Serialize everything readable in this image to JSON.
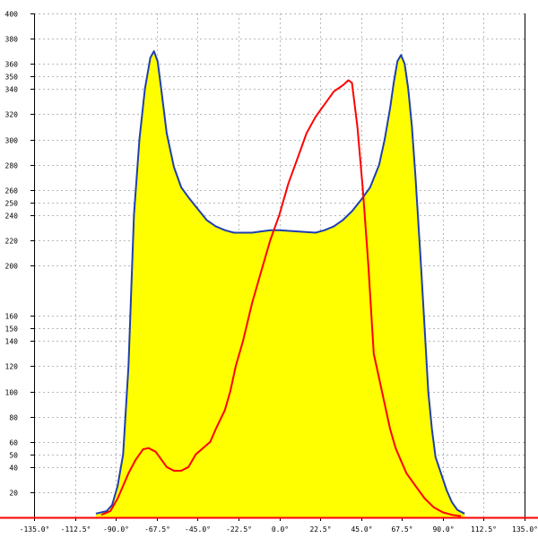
{
  "chart_data": {
    "type": "area",
    "title": "",
    "xlabel": "",
    "ylabel": "",
    "xlim": [
      -135,
      135
    ],
    "ylim": [
      0,
      400
    ],
    "grid": true,
    "x_ticks": [
      {
        "value": -135,
        "label": "-135.0°"
      },
      {
        "value": -112.5,
        "label": "-112.5°"
      },
      {
        "value": -90,
        "label": "-90.0°"
      },
      {
        "value": -67.5,
        "label": "-67.5°"
      },
      {
        "value": -45,
        "label": "-45.0°"
      },
      {
        "value": -22.5,
        "label": "-22.5°"
      },
      {
        "value": 0,
        "label": "0.0°"
      },
      {
        "value": 22.5,
        "label": "22.5°"
      },
      {
        "value": 45,
        "label": "45.0°"
      },
      {
        "value": 67.5,
        "label": "67.5°"
      },
      {
        "value": 90,
        "label": "90.0°"
      },
      {
        "value": 112.5,
        "label": "112.5°"
      },
      {
        "value": 135,
        "label": "135.0°"
      }
    ],
    "y_ticks": [
      {
        "value": 20,
        "label": "20"
      },
      {
        "value": 40,
        "label": "40"
      },
      {
        "value": 50,
        "label": "50"
      },
      {
        "value": 60,
        "label": "60"
      },
      {
        "value": 80,
        "label": "80"
      },
      {
        "value": 100,
        "label": "100"
      },
      {
        "value": 120,
        "label": "120"
      },
      {
        "value": 140,
        "label": "140"
      },
      {
        "value": 150,
        "label": "150"
      },
      {
        "value": 160,
        "label": "160"
      },
      {
        "value": 200,
        "label": "200"
      },
      {
        "value": 220,
        "label": "220"
      },
      {
        "value": 240,
        "label": "240"
      },
      {
        "value": 250,
        "label": "250"
      },
      {
        "value": 260,
        "label": "260"
      },
      {
        "value": 280,
        "label": "280"
      },
      {
        "value": 300,
        "label": "300"
      },
      {
        "value": 320,
        "label": "320"
      },
      {
        "value": 340,
        "label": "340"
      },
      {
        "value": 350,
        "label": "350"
      },
      {
        "value": 360,
        "label": "360"
      },
      {
        "value": 380,
        "label": "380"
      },
      {
        "value": 400,
        "label": "400"
      }
    ],
    "series": [
      {
        "color": "#1f3fb0",
        "fill": "#ffff00",
        "points": [
          [
            -101,
            3
          ],
          [
            -95,
            5
          ],
          [
            -92,
            10
          ],
          [
            -89,
            25
          ],
          [
            -86,
            50
          ],
          [
            -83,
            120
          ],
          [
            -80,
            240
          ],
          [
            -77,
            300
          ],
          [
            -74,
            340
          ],
          [
            -71,
            365
          ],
          [
            -69,
            370
          ],
          [
            -67,
            362
          ],
          [
            -65,
            340
          ],
          [
            -62,
            305
          ],
          [
            -58,
            278
          ],
          [
            -54,
            262
          ],
          [
            -50,
            254
          ],
          [
            -45,
            245
          ],
          [
            -40,
            236
          ],
          [
            -35,
            231
          ],
          [
            -30,
            228
          ],
          [
            -25,
            226
          ],
          [
            -15,
            226
          ],
          [
            -5,
            228
          ],
          [
            0,
            228
          ],
          [
            10,
            227
          ],
          [
            20,
            226
          ],
          [
            25,
            228
          ],
          [
            30,
            231
          ],
          [
            35,
            236
          ],
          [
            40,
            243
          ],
          [
            45,
            252
          ],
          [
            50,
            262
          ],
          [
            55,
            280
          ],
          [
            58,
            300
          ],
          [
            61,
            325
          ],
          [
            63,
            345
          ],
          [
            65,
            362
          ],
          [
            67,
            367
          ],
          [
            69,
            360
          ],
          [
            71,
            340
          ],
          [
            73,
            310
          ],
          [
            75,
            270
          ],
          [
            78,
            200
          ],
          [
            80,
            150
          ],
          [
            82,
            100
          ],
          [
            84,
            70
          ],
          [
            86,
            48
          ],
          [
            89,
            35
          ],
          [
            92,
            22
          ],
          [
            95,
            12
          ],
          [
            98,
            6
          ],
          [
            102,
            3
          ]
        ]
      },
      {
        "color": "#ff0000",
        "points": [
          [
            -98,
            2
          ],
          [
            -93,
            5
          ],
          [
            -89,
            15
          ],
          [
            -86,
            25
          ],
          [
            -83,
            35
          ],
          [
            -79,
            46
          ],
          [
            -75,
            54
          ],
          [
            -72,
            55
          ],
          [
            -68,
            52
          ],
          [
            -66,
            48
          ],
          [
            -62,
            40
          ],
          [
            -58,
            37
          ],
          [
            -54,
            37
          ],
          [
            -50,
            40
          ],
          [
            -46,
            50
          ],
          [
            -42,
            55
          ],
          [
            -38,
            60
          ],
          [
            -35,
            70
          ],
          [
            -30,
            85
          ],
          [
            -27,
            100
          ],
          [
            -24,
            120
          ],
          [
            -20,
            140
          ],
          [
            -15,
            170
          ],
          [
            -10,
            195
          ],
          [
            -5,
            220
          ],
          [
            0,
            240
          ],
          [
            5,
            265
          ],
          [
            10,
            285
          ],
          [
            15,
            305
          ],
          [
            20,
            318
          ],
          [
            25,
            328
          ],
          [
            30,
            338
          ],
          [
            35,
            343
          ],
          [
            38,
            347
          ],
          [
            40,
            345
          ],
          [
            43,
            310
          ],
          [
            46,
            260
          ],
          [
            49,
            200
          ],
          [
            52,
            130
          ],
          [
            55,
            110
          ],
          [
            58,
            90
          ],
          [
            61,
            70
          ],
          [
            64,
            55
          ],
          [
            67,
            45
          ],
          [
            70,
            35
          ],
          [
            75,
            25
          ],
          [
            80,
            15
          ],
          [
            85,
            8
          ],
          [
            90,
            4
          ],
          [
            95,
            2
          ],
          [
            100,
            1
          ]
        ]
      }
    ]
  }
}
